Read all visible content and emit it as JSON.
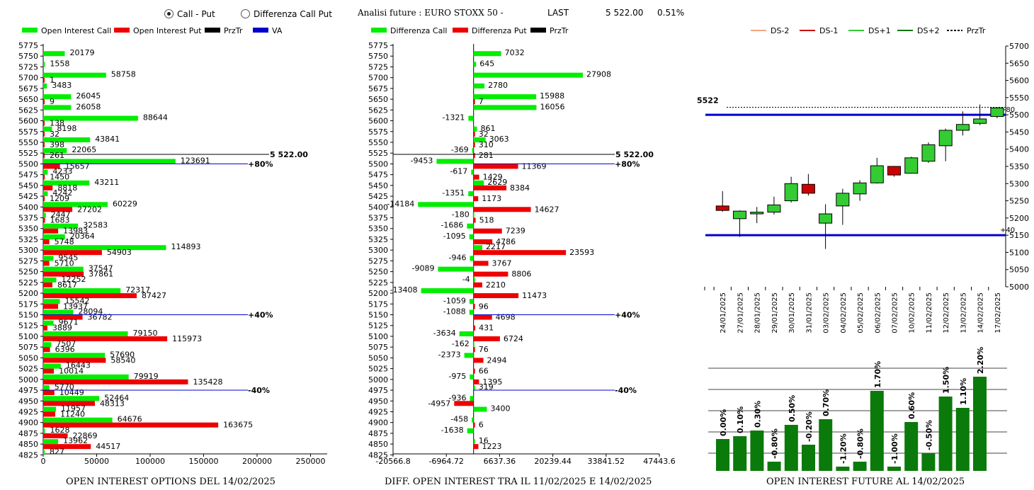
{
  "header": {
    "radio_call_put": "Call - Put",
    "radio_diff": "Differenza Call Put",
    "analisi": "Analisi future : EURO STOXX 50 -",
    "last_label": "LAST",
    "last_value": "5 522.00",
    "last_change": "0.51%"
  },
  "footers": {
    "left": "OPEN INTEREST OPTIONS DEL 14/02/2025",
    "middle": "DIFF. OPEN INTEREST TRA IL 11/02/2025 E 14/02/2025",
    "right": "OPEN INTEREST FUTURE AL 14/02/2025"
  },
  "colors": {
    "call": "#00ee00",
    "put": "#ee0000",
    "przTr": "#000000",
    "va": "#0000cc",
    "ds_minus2": "#f4a582",
    "ds_minus1": "#cc0000",
    "ds_plus1": "#33cc33",
    "ds_plus2": "#007700",
    "bar_future": "#0a7a0a"
  },
  "chart_data": [
    {
      "type": "bar",
      "orientation": "horizontal",
      "legend": [
        "Open Interest Call",
        "Open Interest Put",
        "PrzTr",
        "VA"
      ],
      "strikes": [
        "5775",
        "5750",
        "5725",
        "5700",
        "5675",
        "5650",
        "5625",
        "5600",
        "5575",
        "5550",
        "5525",
        "5500",
        "5475",
        "5450",
        "5425",
        "5400",
        "5375",
        "5350",
        "5325",
        "5300",
        "5275",
        "5250",
        "5225",
        "5200",
        "5175",
        "5150",
        "5125",
        "5100",
        "5075",
        "5050",
        "5025",
        "5000",
        "4975",
        "4950",
        "4925",
        "4900",
        "4875",
        "4850",
        "4825"
      ],
      "call": [
        null,
        20179,
        1558,
        58758,
        3483,
        26045,
        26058,
        88644,
        8198,
        43841,
        22065,
        123691,
        4233,
        43211,
        4242,
        60229,
        2447,
        32583,
        20364,
        114893,
        9545,
        37547,
        12252,
        72317,
        15542,
        28094,
        9671,
        79150,
        7507,
        57690,
        16443,
        79919,
        5770,
        52464,
        11957,
        64676,
        1628,
        13962,
        827
      ],
      "put": [
        null,
        null,
        null,
        1,
        null,
        9,
        null,
        138,
        32,
        398,
        261,
        15657,
        1450,
        8818,
        1209,
        27202,
        1683,
        13983,
        5748,
        54903,
        5710,
        37861,
        8617,
        87427,
        13937,
        36782,
        3889,
        115973,
        6396,
        58540,
        10014,
        135428,
        10449,
        48313,
        11240,
        163675,
        22869,
        44517,
        null
      ],
      "przTr": {
        "strike": 5522,
        "label": "5 522.00"
      },
      "va_lines": [
        {
          "strike": 5500,
          "label": "+80%"
        },
        {
          "strike": 5150,
          "label": "+40%"
        },
        {
          "strike": 4975,
          "label": "-40%"
        }
      ],
      "x_ticks": [
        "0",
        "50000",
        "100000",
        "150000",
        "200000",
        "250000"
      ],
      "xlim": [
        0,
        250000
      ]
    },
    {
      "type": "bar",
      "orientation": "horizontal",
      "legend": [
        "Differenza Call",
        "Differenza Put",
        "PrzTr"
      ],
      "strikes": [
        "5775",
        "5750",
        "5725",
        "5700",
        "5675",
        "5650",
        "5625",
        "5600",
        "5575",
        "5550",
        "5525",
        "5500",
        "5475",
        "5450",
        "5425",
        "5400",
        "5375",
        "5350",
        "5325",
        "5300",
        "5275",
        "5250",
        "5225",
        "5200",
        "5175",
        "5150",
        "5125",
        "5100",
        "5075",
        "5050",
        "5025",
        "5000",
        "4975",
        "4950",
        "4925",
        "4900",
        "4875",
        "4850",
        "4825"
      ],
      "call": [
        null,
        7032,
        645,
        27908,
        2780,
        15988,
        16056,
        -1321,
        861,
        3063,
        -369,
        -9453,
        -617,
        2629,
        -1351,
        -14184,
        -180,
        -1686,
        -1095,
        2217,
        -946,
        -9089,
        -4,
        -13408,
        -1059,
        -1088,
        null,
        -3634,
        -162,
        -2373,
        null,
        -975,
        319,
        -936,
        3400,
        -458,
        -1638,
        16,
        null
      ],
      "put": [
        null,
        null,
        null,
        null,
        null,
        7,
        null,
        null,
        32,
        310,
        281,
        11369,
        1429,
        8384,
        1173,
        14627,
        518,
        7239,
        4786,
        23593,
        3767,
        8806,
        2210,
        11473,
        96,
        4698,
        431,
        6724,
        76,
        2494,
        66,
        1395,
        null,
        -4957,
        null,
        6,
        null,
        1223,
        null
      ],
      "przTr": {
        "strike": 5522,
        "label": "5 522.00"
      },
      "va_lines": [
        {
          "strike": 5500,
          "label": "+80%"
        },
        {
          "strike": 5150,
          "label": "+40%"
        },
        {
          "strike": 4975,
          "label": "-40%"
        }
      ],
      "x_ticks": [
        "-20566.8",
        "-6964.72",
        "6637.36",
        "20239.44",
        "33841.52",
        "47443.6"
      ],
      "xlim": [
        -20566.8,
        47443.6
      ]
    },
    {
      "type": "candlestick",
      "legend": [
        "DS-2",
        "DS-1",
        "DS+1",
        "DS+2",
        "PrzTr"
      ],
      "dates": [
        "24/01/2025",
        "27/01/2025",
        "28/01/2025",
        "29/01/2025",
        "30/01/2025",
        "31/01/2025",
        "03/02/2025",
        "04/02/2025",
        "05/02/2025",
        "06/02/2025",
        "07/02/2025",
        "10/02/2025",
        "11/02/2025",
        "12/02/2025",
        "13/02/2025",
        "14/02/2025",
        "17/02/2025"
      ],
      "open": [
        5235,
        5198,
        5212,
        5217,
        5250,
        5298,
        5185,
        5235,
        5270,
        5302,
        5350,
        5330,
        5365,
        5410,
        5455,
        5475,
        5495
      ],
      "close": [
        5222,
        5220,
        5217,
        5238,
        5300,
        5272,
        5212,
        5272,
        5302,
        5352,
        5325,
        5375,
        5413,
        5455,
        5472,
        5488,
        5520
      ],
      "high": [
        5278,
        5222,
        5232,
        5262,
        5320,
        5328,
        5240,
        5285,
        5310,
        5375,
        5350,
        5378,
        5420,
        5460,
        5510,
        5530,
        5522
      ],
      "low": [
        5218,
        5145,
        5185,
        5210,
        5245,
        5265,
        5110,
        5180,
        5250,
        5300,
        5320,
        5330,
        5360,
        5365,
        5440,
        5470,
        5490
      ],
      "przTr": {
        "value": 5522,
        "label": "5522"
      },
      "ds_lines": [
        {
          "value": 5500,
          "label": "+80"
        },
        {
          "value": 5150,
          "label": "+40"
        }
      ],
      "y_ticks": [
        "5700",
        "5650",
        "5600",
        "5550",
        "5500",
        "5450",
        "5400",
        "5350",
        "5300",
        "5250",
        "5200",
        "5150",
        "5100",
        "5050",
        "5000"
      ],
      "ylim": [
        5000,
        5700
      ]
    },
    {
      "type": "bar",
      "labels": [
        "0.00%",
        "0.10%",
        "0.30%",
        "-0.80%",
        "0.50%",
        "-0.20%",
        "0.70%",
        "-1.20%",
        "-0.80%",
        "1.70%",
        "-1.00%",
        "0.60%",
        "-0.50%",
        "1.50%",
        "1.10%",
        "2.20%"
      ],
      "values": [
        0.0,
        0.1,
        0.3,
        -0.8,
        0.5,
        -0.2,
        0.7,
        -1.2,
        -0.8,
        1.7,
        -1.0,
        0.6,
        -0.5,
        1.5,
        1.1,
        2.2
      ]
    }
  ]
}
